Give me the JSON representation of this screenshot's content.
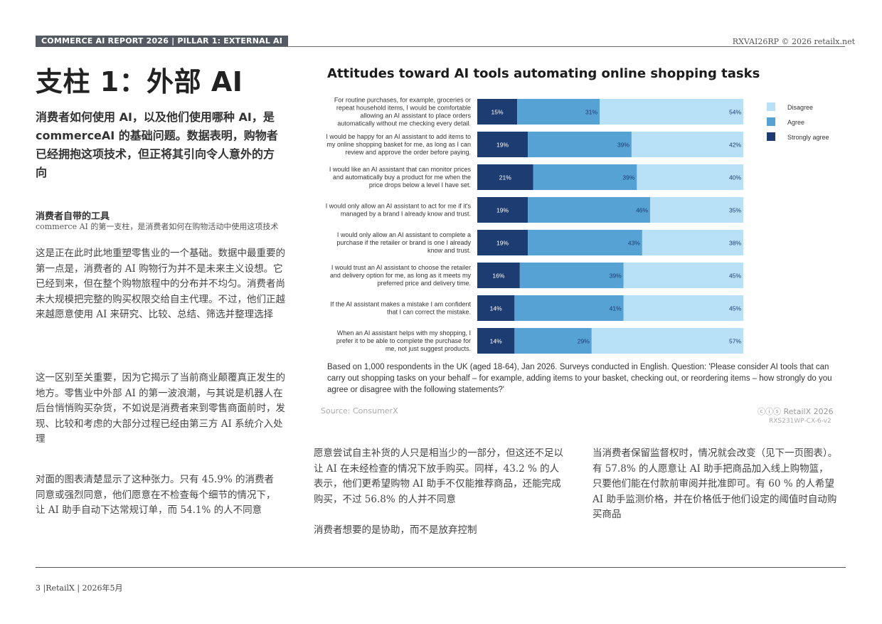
{
  "header": {
    "tag": "COMMERCE AI REPORT 2026 | PILLAR 1: EXTERNAL AI",
    "right": "RXVAI26RP © 2026 retailx.net"
  },
  "page_title": "支柱 1：外部 AI",
  "intro": "消费者如何使用 AI，以及他们使用哪种 AI，是 commerceAI 的基础问题。数据表明，购物者已经拥抱这项技术，但正将其引向令人意外的方向",
  "subsection": {
    "heading": "消费者自带的工具",
    "note": "commerce AI 的第一支柱，是消费者如何在购物活动中使用这项技术"
  },
  "paragraphs": {
    "p1": "这是正在此时此地重塑零售业的一个基础。数据中最重要的第一点是，消费者的 AI 购物行为并不是未来主义设想。它已经到来，但在整个购物旅程中的分布并不均匀。消费者尚未大规模把完整的购买权限交给自主代理。不过，他们正越来越愿意使用 AI 来研究、比较、总结、筛选并整理选择",
    "p2": "这一区别至关重要，因为它揭示了当前商业颠覆真正发生的地方。零售业中外部 AI 的第一波浪潮，与其说是机器人在后台悄悄购买杂货，不如说是消费者来到零售商面前时，发现、比较和考虑的大部分过程已经由第三方 AI 系统介入处理",
    "p3": "对面的图表清楚显示了这种张力。只有 45.9% 的消费者同意或强烈同意，他们愿意在不检查每个细节的情况下，让 AI 助手自动下达常规订单，而 54.1% 的人不同意",
    "p4": "愿意尝试自主补货的人只是相当少的一部分，但这还不足以让 AI 在未经检查的情况下放手购买。同样，43.2 % 的人表示，他们更希望购物 AI 助手不仅能推荐商品，还能完成购买，不过 56.8% 的人并不同意",
    "p5": "消费者想要的是协助，而不是放弃控制",
    "p6": "当消费者保留监督权时，情况就会改变（见下一页图表）。有 57.8% 的人愿意让 AI 助手把商品加入线上购物篮，只要他们能在付款前审阅并批准即可。有 60 % 的人希望 AI 助手监测价格，并在价格低于他们设定的阈值时自动购买商品"
  },
  "chart_note": "Based on 1,000 respondents in the UK (aged 18-64), Jan 2026. Surveys conducted in English. Question: 'Please consider AI tools that can carry out shopping tasks on your behalf – for example, adding items to your basket, checking out, or reordering items – how strongly do you agree or disagree with the following statements?'",
  "source": "Source: ConsumerX",
  "copyright": "ⓒⓘⓢ RetailX 2026",
  "chart_code": "RXS231WP-CX-6-v2",
  "footer": "3 |RetailX | 2026年5月",
  "colors": {
    "strongly_agree": "#1d3d72",
    "agree": "#56a2d5",
    "disagree": "#b8e1f7"
  },
  "chart_data": {
    "type": "bar",
    "orientation": "horizontal",
    "stacked": true,
    "title": "Attitudes toward AI tools automating online shopping tasks",
    "unit": "%",
    "xlim": [
      0,
      100
    ],
    "legend_position": "right",
    "categories": [
      "For routine purchases, for example, groceries or repeat household items, I would be comfortable allowing an AI assistant to place orders automatically without me checking every detail.",
      "I would be happy for an AI assistant to add items to my online shopping basket for me, as long as I can review and approve the order before paying.",
      "I would like an AI assistant that can monitor prices and automatically buy a product for me when the price drops below a level I have set.",
      "I would only allow an AI assistant to act for me if it's managed by a brand I already know and trust.",
      "I would only allow an AI assistant to complete a purchase if the retailer or brand is one I already know and trust.",
      "I would trust an AI assistant to choose the retailer and delivery option for me, as long as it meets my preferred price and delivery time.",
      "If the AI assistant makes a mistake I am confident that I can correct the mistake.",
      "When an AI assistant helps with my shopping, I prefer it to be able to complete the purchase for me, not just suggest products."
    ],
    "series": [
      {
        "name": "Strongly agree",
        "values": [
          15,
          19,
          21,
          19,
          19,
          16,
          14,
          14
        ]
      },
      {
        "name": "Agree",
        "values": [
          31,
          39,
          39,
          46,
          43,
          39,
          41,
          29
        ]
      },
      {
        "name": "Disagree",
        "values": [
          54,
          42,
          40,
          35,
          38,
          45,
          45,
          57
        ]
      }
    ],
    "legend": [
      "Disagree",
      "Agree",
      "Strongly agree"
    ]
  }
}
